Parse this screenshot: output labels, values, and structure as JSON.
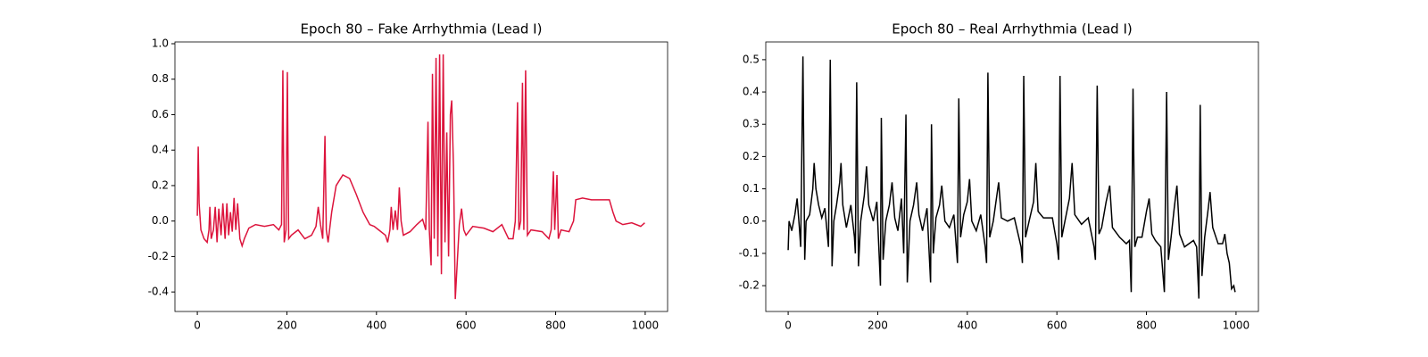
{
  "chart_data": [
    {
      "type": "line",
      "title": "Epoch 80 – Fake Arrhythmia (Lead I)",
      "series": [
        {
          "color": "#dc143c",
          "x": [
            0,
            2,
            4,
            8,
            15,
            22,
            26,
            28,
            31,
            36,
            40,
            44,
            48,
            53,
            57,
            62,
            66,
            70,
            74,
            78,
            82,
            86,
            90,
            95,
            100,
            105,
            115,
            130,
            150,
            170,
            182,
            188,
            191,
            194,
            198,
            201,
            204,
            210,
            225,
            240,
            255,
            265,
            270,
            275,
            280,
            285,
            288,
            292,
            300,
            310,
            325,
            340,
            355,
            370,
            385,
            395,
            405,
            420,
            425,
            430,
            433,
            437,
            442,
            447,
            451,
            455,
            460,
            475,
            490,
            503,
            510,
            515,
            518,
            522,
            525,
            529,
            533,
            537,
            541,
            545,
            549,
            553,
            557,
            561,
            565,
            568,
            572,
            576,
            580,
            585,
            590,
            595,
            600,
            615,
            640,
            660,
            680,
            695,
            705,
            710,
            715,
            718,
            722,
            726,
            729,
            733,
            737,
            745,
            770,
            785,
            790,
            795,
            798,
            803,
            806,
            812,
            830,
            840,
            845,
            860,
            880,
            900,
            920,
            928,
            935,
            950,
            970,
            990,
            999
          ],
          "values": [
            0.03,
            0.42,
            0.1,
            -0.05,
            -0.1,
            -0.12,
            -0.05,
            0.08,
            -0.1,
            -0.05,
            0.08,
            -0.12,
            0.07,
            -0.08,
            0.1,
            -0.1,
            0.1,
            -0.08,
            0.05,
            -0.06,
            0.13,
            -0.05,
            0.1,
            -0.1,
            -0.14,
            -0.1,
            -0.04,
            -0.02,
            -0.03,
            -0.02,
            -0.05,
            -0.02,
            0.85,
            -0.12,
            -0.05,
            0.84,
            -0.1,
            -0.08,
            -0.05,
            -0.1,
            -0.08,
            -0.03,
            0.08,
            -0.02,
            -0.1,
            0.48,
            -0.05,
            -0.12,
            0.05,
            0.2,
            0.26,
            0.24,
            0.15,
            0.05,
            -0.02,
            -0.03,
            -0.05,
            -0.08,
            -0.12,
            -0.05,
            0.08,
            -0.05,
            0.06,
            -0.05,
            0.19,
            0.0,
            -0.08,
            -0.06,
            -0.02,
            0.01,
            -0.05,
            0.56,
            -0.05,
            -0.25,
            0.83,
            -0.1,
            0.92,
            -0.2,
            0.94,
            -0.3,
            0.94,
            -0.12,
            0.5,
            -0.2,
            0.6,
            0.68,
            0.3,
            -0.44,
            -0.25,
            -0.02,
            0.07,
            -0.05,
            -0.08,
            -0.03,
            -0.04,
            -0.06,
            -0.02,
            -0.1,
            -0.1,
            0.0,
            0.67,
            -0.05,
            0.0,
            0.78,
            -0.05,
            0.85,
            -0.08,
            -0.05,
            -0.06,
            -0.1,
            -0.05,
            0.28,
            -0.05,
            0.26,
            -0.1,
            -0.05,
            -0.06,
            0.0,
            0.12,
            0.13,
            0.12,
            0.12,
            0.12,
            0.05,
            0.0,
            -0.02,
            -0.01,
            -0.03,
            -0.01
          ]
        }
      ],
      "xlim": [
        -50,
        1050
      ],
      "xticks": [
        0,
        200,
        400,
        600,
        800,
        1000
      ],
      "ylim": [
        -0.51,
        1.01
      ],
      "yticks": [
        -0.4,
        -0.2,
        {
          "value": 0,
          "label": "0.0"
        },
        0.2,
        0.4,
        0.6,
        0.8,
        {
          "value": 1,
          "label": "1.0"
        }
      ]
    },
    {
      "type": "line",
      "title": "Epoch 80 – Real Arrhythmia (Lead I)",
      "series": [
        {
          "color": "#000000",
          "x": [
            0,
            2,
            8,
            15,
            20,
            25,
            28,
            33,
            37,
            40,
            48,
            55,
            58,
            62,
            68,
            75,
            82,
            88,
            90,
            94,
            98,
            102,
            108,
            115,
            118,
            122,
            130,
            140,
            148,
            150,
            153,
            157,
            162,
            170,
            175,
            180,
            190,
            198,
            203,
            206,
            208,
            212,
            218,
            226,
            232,
            238,
            245,
            253,
            258,
            263,
            266,
            272,
            280,
            287,
            292,
            300,
            310,
            318,
            320,
            324,
            330,
            338,
            343,
            350,
            360,
            370,
            378,
            381,
            385,
            392,
            400,
            405,
            410,
            420,
            430,
            440,
            443,
            446,
            450,
            458,
            465,
            470,
            476,
            490,
            505,
            520,
            523,
            526,
            530,
            538,
            548,
            553,
            558,
            570,
            590,
            600,
            604,
            607,
            611,
            618,
            628,
            634,
            640,
            655,
            670,
            683,
            686,
            690,
            694,
            700,
            710,
            718,
            724,
            740,
            755,
            762,
            766,
            770,
            774,
            780,
            790,
            800,
            806,
            812,
            820,
            832,
            840,
            845,
            849,
            855,
            862,
            868,
            874,
            885,
            905,
            912,
            917,
            920,
            924,
            930,
            938,
            942,
            948,
            960,
            970,
            975,
            980,
            985,
            990,
            995,
            998
          ],
          "values": [
            -0.09,
            0.0,
            -0.03,
            0.02,
            0.07,
            -0.02,
            -0.08,
            0.51,
            -0.12,
            0.0,
            0.02,
            0.1,
            0.18,
            0.1,
            0.05,
            0.01,
            0.04,
            -0.05,
            -0.08,
            0.5,
            -0.14,
            0.0,
            0.05,
            0.12,
            0.18,
            0.05,
            -0.02,
            0.05,
            -0.05,
            -0.1,
            0.43,
            -0.14,
            0.0,
            0.08,
            0.17,
            0.05,
            0.0,
            0.06,
            -0.1,
            -0.2,
            0.32,
            -0.12,
            0.0,
            0.05,
            0.12,
            0.01,
            -0.03,
            0.07,
            -0.1,
            0.33,
            -0.19,
            0.0,
            0.05,
            0.12,
            0.02,
            -0.03,
            0.04,
            -0.19,
            0.3,
            -0.1,
            0.01,
            0.05,
            0.11,
            0.0,
            -0.02,
            0.02,
            -0.13,
            0.38,
            -0.05,
            0.02,
            0.06,
            0.13,
            0.0,
            -0.03,
            0.02,
            -0.08,
            -0.13,
            0.46,
            -0.05,
            0.0,
            0.07,
            0.12,
            0.01,
            0.0,
            0.01,
            -0.08,
            -0.13,
            0.45,
            -0.05,
            0.0,
            0.06,
            0.18,
            0.03,
            0.01,
            0.01,
            -0.07,
            -0.12,
            0.45,
            -0.05,
            0.0,
            0.07,
            0.18,
            0.02,
            -0.01,
            0.01,
            -0.08,
            -0.12,
            0.42,
            -0.04,
            -0.02,
            0.06,
            0.11,
            -0.02,
            -0.05,
            -0.07,
            -0.06,
            -0.22,
            0.41,
            -0.08,
            -0.05,
            -0.05,
            0.03,
            0.07,
            -0.04,
            -0.06,
            -0.08,
            -0.22,
            0.4,
            -0.12,
            -0.05,
            0.04,
            0.11,
            -0.04,
            -0.08,
            -0.06,
            -0.08,
            -0.24,
            0.36,
            -0.17,
            -0.05,
            0.04,
            0.09,
            -0.02,
            -0.07,
            -0.07,
            -0.04,
            -0.1,
            -0.13,
            -0.21,
            -0.2,
            -0.22
          ]
        }
      ],
      "xlim": [
        -50,
        1050
      ],
      "xticks": [
        0,
        200,
        400,
        600,
        800,
        1000
      ],
      "ylim": [
        -0.28,
        0.555
      ],
      "yticks": [
        -0.2,
        -0.1,
        {
          "value": 0,
          "label": "0.0"
        },
        0.1,
        0.2,
        0.3,
        0.4,
        0.5
      ]
    }
  ]
}
